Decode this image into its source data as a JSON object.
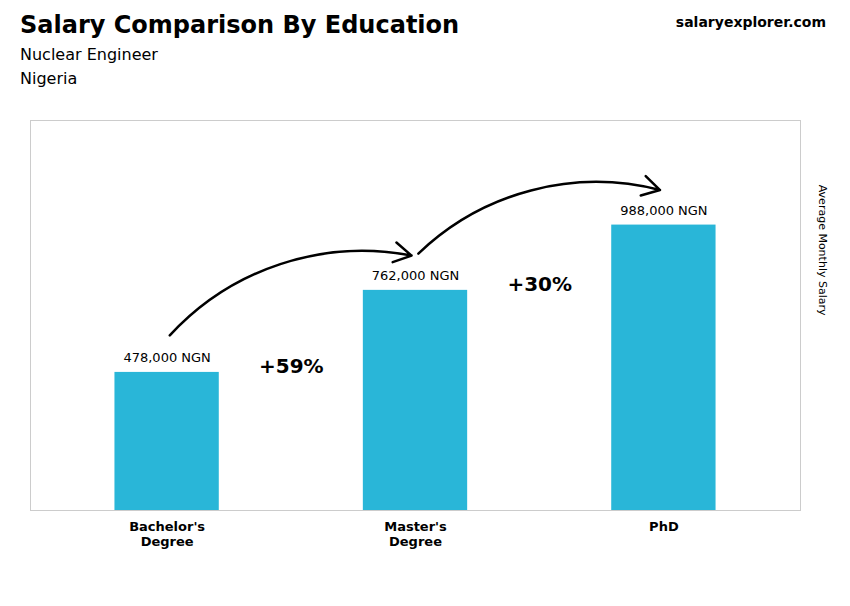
{
  "chart_data": {
    "type": "bar",
    "title": "Salary Comparison By Education",
    "subtitle": "Nuclear Engineer",
    "ylabel": "Average Monthly Salary",
    "categories": [
      "Bachelor's\nDegree",
      "Master's\nDegree",
      "PhD"
    ],
    "values": [
      478000,
      762000,
      988000
    ],
    "value_labels": [
      "478,000 NGN",
      "762,000 NGN",
      "988,000 NGN"
    ],
    "data_labels": true,
    "color": "#29b6d8",
    "ylim": [
      0,
      1350000
    ],
    "tick_labels": "x",
    "annotations": [
      {
        "text": "Nigeria"
      },
      {
        "text": "salaryexplorer.com"
      },
      {
        "text": "+59%",
        "from": "Bachelor's\nDegree",
        "to": "Master's\nDegree"
      },
      {
        "text": "+30%",
        "from": "Master's\nDegree",
        "to": "PhD"
      }
    ]
  }
}
